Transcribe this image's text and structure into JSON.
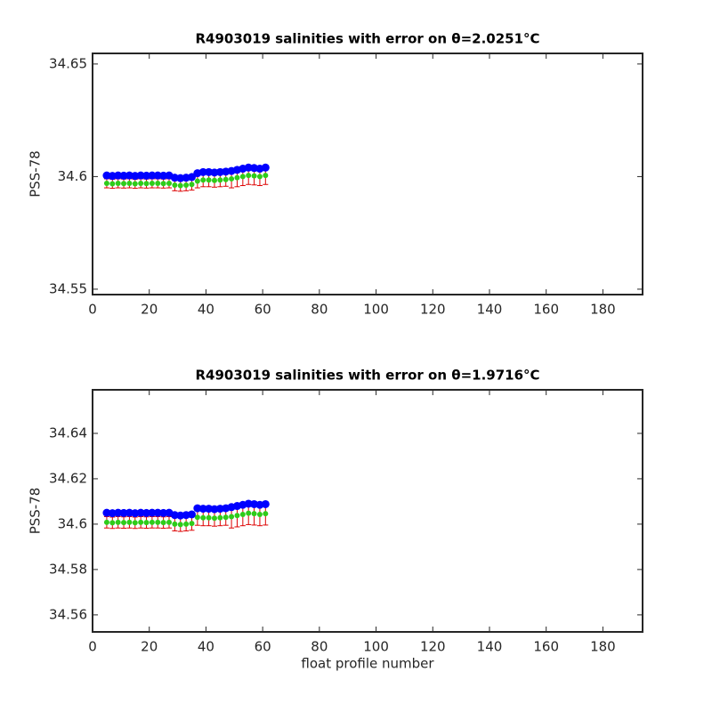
{
  "chart_data": [
    {
      "type": "scatter",
      "title": "R4903019 salinities with error on θ=2.0251°C",
      "ylabel": "PSS-78",
      "x": [
        5,
        7,
        9,
        11,
        13,
        15,
        17,
        19,
        21,
        23,
        25,
        27,
        29,
        31,
        33,
        35,
        37,
        39,
        41,
        43,
        45,
        47,
        49,
        51,
        53,
        55,
        57,
        59,
        61
      ],
      "xlim": [
        0,
        194
      ],
      "xticks": [
        0,
        20,
        40,
        60,
        80,
        100,
        120,
        140,
        160,
        180
      ],
      "ylim": [
        34.5476,
        34.6547
      ],
      "yticks": [
        34.55,
        34.6,
        34.65
      ],
      "series": [
        {
          "color": "#0000ff",
          "values": [
            34.6005,
            34.6003,
            34.6005,
            34.6004,
            34.6005,
            34.6003,
            34.6005,
            34.6004,
            34.6005,
            34.6005,
            34.6004,
            34.6005,
            34.5995,
            34.5993,
            34.5995,
            34.5998,
            34.6015,
            34.602,
            34.602,
            34.6018,
            34.602,
            34.6022,
            34.6025,
            34.603,
            34.6035,
            34.604,
            34.6038,
            34.6035,
            34.604
          ]
        },
        {
          "color": "#2ecc1a",
          "error_color": "#dd0000",
          "values": [
            34.597,
            34.5968,
            34.597,
            34.5969,
            34.597,
            34.5968,
            34.597,
            34.5969,
            34.597,
            34.597,
            34.5969,
            34.597,
            34.5962,
            34.596,
            34.5962,
            34.5965,
            34.598,
            34.5985,
            34.5985,
            34.5983,
            34.5985,
            34.5987,
            34.599,
            34.5995,
            34.6,
            34.6005,
            34.6003,
            34.6,
            34.6005
          ],
          "errors": [
            0.002,
            0.002,
            0.002,
            0.002,
            0.002,
            0.002,
            0.002,
            0.002,
            0.002,
            0.002,
            0.002,
            0.002,
            0.0025,
            0.0025,
            0.0025,
            0.0025,
            0.003,
            0.003,
            0.003,
            0.003,
            0.003,
            0.003,
            0.004,
            0.004,
            0.004,
            0.004,
            0.004,
            0.004,
            0.004
          ]
        }
      ]
    },
    {
      "type": "scatter",
      "title": "R4903019 salinities with error on θ=1.9716°C",
      "ylabel": "PSS-78",
      "xlabel": "float profile number",
      "x": [
        5,
        7,
        9,
        11,
        13,
        15,
        17,
        19,
        21,
        23,
        25,
        27,
        29,
        31,
        33,
        35,
        37,
        39,
        41,
        43,
        45,
        47,
        49,
        51,
        53,
        55,
        57,
        59,
        61
      ],
      "xlim": [
        0,
        194
      ],
      "xticks": [
        0,
        20,
        40,
        60,
        80,
        100,
        120,
        140,
        160,
        180
      ],
      "ylim": [
        34.5525,
        34.6592
      ],
      "yticks": [
        34.56,
        34.58,
        34.6,
        34.62,
        34.64
      ],
      "series": [
        {
          "color": "#0000ff",
          "values": [
            34.605,
            34.6048,
            34.605,
            34.6049,
            34.605,
            34.6048,
            34.605,
            34.6049,
            34.605,
            34.605,
            34.6049,
            34.605,
            34.604,
            34.6038,
            34.604,
            34.6043,
            34.607,
            34.6068,
            34.6068,
            34.6066,
            34.6068,
            34.607,
            34.6075,
            34.608,
            34.6085,
            34.609,
            34.6088,
            34.6085,
            34.6088
          ]
        },
        {
          "color": "#2ecc1a",
          "error_color": "#dd0000",
          "values": [
            34.6008,
            34.6006,
            34.6008,
            34.6007,
            34.6008,
            34.6006,
            34.6008,
            34.6007,
            34.6008,
            34.6008,
            34.6007,
            34.6008,
            34.6,
            34.5998,
            34.6,
            34.6003,
            34.603,
            34.6028,
            34.6028,
            34.6026,
            34.6028,
            34.603,
            34.6033,
            34.6038,
            34.6043,
            34.6048,
            34.6046,
            34.6043,
            34.6046
          ],
          "errors": [
            0.0025,
            0.0025,
            0.0025,
            0.0025,
            0.0025,
            0.0025,
            0.0025,
            0.0025,
            0.0025,
            0.0025,
            0.0025,
            0.0025,
            0.003,
            0.003,
            0.003,
            0.003,
            0.0035,
            0.0035,
            0.0035,
            0.0035,
            0.0035,
            0.0035,
            0.005,
            0.005,
            0.005,
            0.005,
            0.005,
            0.005,
            0.005
          ]
        }
      ]
    }
  ]
}
